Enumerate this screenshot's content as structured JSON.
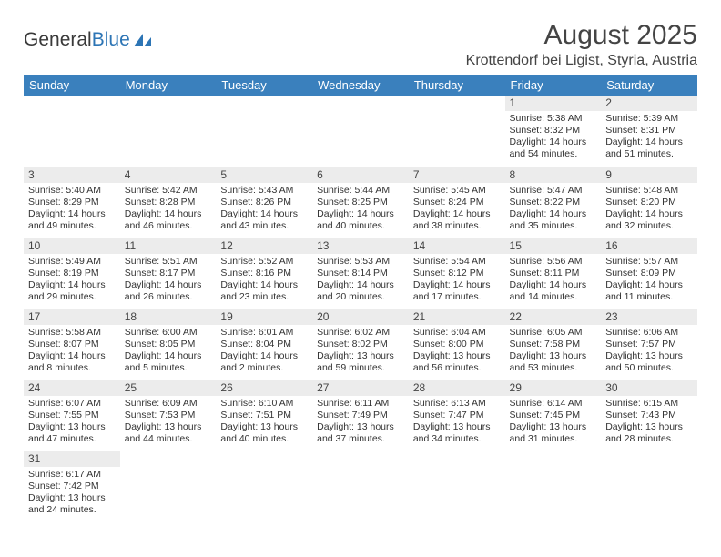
{
  "logo": {
    "part1": "General",
    "part2": "Blue"
  },
  "title": "August 2025",
  "location": "Krottendorf bei Ligist, Styria, Austria",
  "colors": {
    "header_bg": "#3a80bd",
    "header_text": "#ffffff",
    "daynum_bg": "#ececec",
    "cell_border": "#3a80bd",
    "text": "#333333",
    "logo_blue": "#2d75b5"
  },
  "fonts": {
    "title_size": 30,
    "location_size": 16,
    "dayhead_size": 13,
    "daynum_size": 12,
    "content_size": 10.5
  },
  "day_headers": [
    "Sunday",
    "Monday",
    "Tuesday",
    "Wednesday",
    "Thursday",
    "Friday",
    "Saturday"
  ],
  "weeks": [
    [
      {
        "n": "",
        "sunrise": "",
        "sunset": "",
        "daylight": ""
      },
      {
        "n": "",
        "sunrise": "",
        "sunset": "",
        "daylight": ""
      },
      {
        "n": "",
        "sunrise": "",
        "sunset": "",
        "daylight": ""
      },
      {
        "n": "",
        "sunrise": "",
        "sunset": "",
        "daylight": ""
      },
      {
        "n": "",
        "sunrise": "",
        "sunset": "",
        "daylight": ""
      },
      {
        "n": "1",
        "sunrise": "Sunrise: 5:38 AM",
        "sunset": "Sunset: 8:32 PM",
        "daylight": "Daylight: 14 hours and 54 minutes."
      },
      {
        "n": "2",
        "sunrise": "Sunrise: 5:39 AM",
        "sunset": "Sunset: 8:31 PM",
        "daylight": "Daylight: 14 hours and 51 minutes."
      }
    ],
    [
      {
        "n": "3",
        "sunrise": "Sunrise: 5:40 AM",
        "sunset": "Sunset: 8:29 PM",
        "daylight": "Daylight: 14 hours and 49 minutes."
      },
      {
        "n": "4",
        "sunrise": "Sunrise: 5:42 AM",
        "sunset": "Sunset: 8:28 PM",
        "daylight": "Daylight: 14 hours and 46 minutes."
      },
      {
        "n": "5",
        "sunrise": "Sunrise: 5:43 AM",
        "sunset": "Sunset: 8:26 PM",
        "daylight": "Daylight: 14 hours and 43 minutes."
      },
      {
        "n": "6",
        "sunrise": "Sunrise: 5:44 AM",
        "sunset": "Sunset: 8:25 PM",
        "daylight": "Daylight: 14 hours and 40 minutes."
      },
      {
        "n": "7",
        "sunrise": "Sunrise: 5:45 AM",
        "sunset": "Sunset: 8:24 PM",
        "daylight": "Daylight: 14 hours and 38 minutes."
      },
      {
        "n": "8",
        "sunrise": "Sunrise: 5:47 AM",
        "sunset": "Sunset: 8:22 PM",
        "daylight": "Daylight: 14 hours and 35 minutes."
      },
      {
        "n": "9",
        "sunrise": "Sunrise: 5:48 AM",
        "sunset": "Sunset: 8:20 PM",
        "daylight": "Daylight: 14 hours and 32 minutes."
      }
    ],
    [
      {
        "n": "10",
        "sunrise": "Sunrise: 5:49 AM",
        "sunset": "Sunset: 8:19 PM",
        "daylight": "Daylight: 14 hours and 29 minutes."
      },
      {
        "n": "11",
        "sunrise": "Sunrise: 5:51 AM",
        "sunset": "Sunset: 8:17 PM",
        "daylight": "Daylight: 14 hours and 26 minutes."
      },
      {
        "n": "12",
        "sunrise": "Sunrise: 5:52 AM",
        "sunset": "Sunset: 8:16 PM",
        "daylight": "Daylight: 14 hours and 23 minutes."
      },
      {
        "n": "13",
        "sunrise": "Sunrise: 5:53 AM",
        "sunset": "Sunset: 8:14 PM",
        "daylight": "Daylight: 14 hours and 20 minutes."
      },
      {
        "n": "14",
        "sunrise": "Sunrise: 5:54 AM",
        "sunset": "Sunset: 8:12 PM",
        "daylight": "Daylight: 14 hours and 17 minutes."
      },
      {
        "n": "15",
        "sunrise": "Sunrise: 5:56 AM",
        "sunset": "Sunset: 8:11 PM",
        "daylight": "Daylight: 14 hours and 14 minutes."
      },
      {
        "n": "16",
        "sunrise": "Sunrise: 5:57 AM",
        "sunset": "Sunset: 8:09 PM",
        "daylight": "Daylight: 14 hours and 11 minutes."
      }
    ],
    [
      {
        "n": "17",
        "sunrise": "Sunrise: 5:58 AM",
        "sunset": "Sunset: 8:07 PM",
        "daylight": "Daylight: 14 hours and 8 minutes."
      },
      {
        "n": "18",
        "sunrise": "Sunrise: 6:00 AM",
        "sunset": "Sunset: 8:05 PM",
        "daylight": "Daylight: 14 hours and 5 minutes."
      },
      {
        "n": "19",
        "sunrise": "Sunrise: 6:01 AM",
        "sunset": "Sunset: 8:04 PM",
        "daylight": "Daylight: 14 hours and 2 minutes."
      },
      {
        "n": "20",
        "sunrise": "Sunrise: 6:02 AM",
        "sunset": "Sunset: 8:02 PM",
        "daylight": "Daylight: 13 hours and 59 minutes."
      },
      {
        "n": "21",
        "sunrise": "Sunrise: 6:04 AM",
        "sunset": "Sunset: 8:00 PM",
        "daylight": "Daylight: 13 hours and 56 minutes."
      },
      {
        "n": "22",
        "sunrise": "Sunrise: 6:05 AM",
        "sunset": "Sunset: 7:58 PM",
        "daylight": "Daylight: 13 hours and 53 minutes."
      },
      {
        "n": "23",
        "sunrise": "Sunrise: 6:06 AM",
        "sunset": "Sunset: 7:57 PM",
        "daylight": "Daylight: 13 hours and 50 minutes."
      }
    ],
    [
      {
        "n": "24",
        "sunrise": "Sunrise: 6:07 AM",
        "sunset": "Sunset: 7:55 PM",
        "daylight": "Daylight: 13 hours and 47 minutes."
      },
      {
        "n": "25",
        "sunrise": "Sunrise: 6:09 AM",
        "sunset": "Sunset: 7:53 PM",
        "daylight": "Daylight: 13 hours and 44 minutes."
      },
      {
        "n": "26",
        "sunrise": "Sunrise: 6:10 AM",
        "sunset": "Sunset: 7:51 PM",
        "daylight": "Daylight: 13 hours and 40 minutes."
      },
      {
        "n": "27",
        "sunrise": "Sunrise: 6:11 AM",
        "sunset": "Sunset: 7:49 PM",
        "daylight": "Daylight: 13 hours and 37 minutes."
      },
      {
        "n": "28",
        "sunrise": "Sunrise: 6:13 AM",
        "sunset": "Sunset: 7:47 PM",
        "daylight": "Daylight: 13 hours and 34 minutes."
      },
      {
        "n": "29",
        "sunrise": "Sunrise: 6:14 AM",
        "sunset": "Sunset: 7:45 PM",
        "daylight": "Daylight: 13 hours and 31 minutes."
      },
      {
        "n": "30",
        "sunrise": "Sunrise: 6:15 AM",
        "sunset": "Sunset: 7:43 PM",
        "daylight": "Daylight: 13 hours and 28 minutes."
      }
    ],
    [
      {
        "n": "31",
        "sunrise": "Sunrise: 6:17 AM",
        "sunset": "Sunset: 7:42 PM",
        "daylight": "Daylight: 13 hours and 24 minutes."
      },
      {
        "n": "",
        "sunrise": "",
        "sunset": "",
        "daylight": ""
      },
      {
        "n": "",
        "sunrise": "",
        "sunset": "",
        "daylight": ""
      },
      {
        "n": "",
        "sunrise": "",
        "sunset": "",
        "daylight": ""
      },
      {
        "n": "",
        "sunrise": "",
        "sunset": "",
        "daylight": ""
      },
      {
        "n": "",
        "sunrise": "",
        "sunset": "",
        "daylight": ""
      },
      {
        "n": "",
        "sunrise": "",
        "sunset": "",
        "daylight": ""
      }
    ]
  ]
}
